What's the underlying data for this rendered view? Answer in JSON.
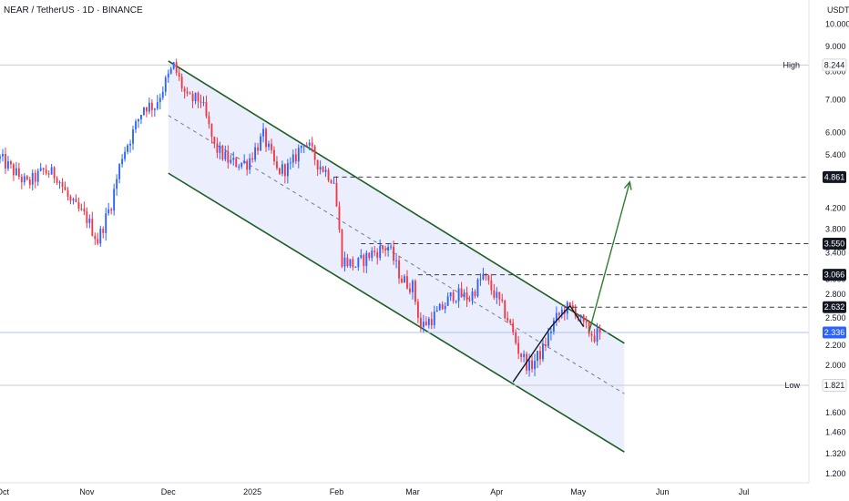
{
  "header": {
    "symbol_line": "NEAR / TetherUS · 1D · BINANCE",
    "currency": "USDT"
  },
  "chart_data": {
    "type": "candlestick",
    "y_scale": "log",
    "ylim": [
      1.15,
      11.2
    ],
    "y_ticks": [
      "10.000",
      "9.000",
      "8.000",
      "7.000",
      "6.000",
      "5.400",
      "4.800",
      "4.200",
      "3.800",
      "3.400",
      "3.000",
      "2.800",
      "2.500",
      "2.200",
      "2.000",
      "1.600",
      "1.460",
      "1.320",
      "1.200"
    ],
    "x_ticks": [
      "Oct",
      "Nov",
      "Dec",
      "2025",
      "Feb",
      "Mar",
      "Apr",
      "May",
      "Jun",
      "Jul"
    ],
    "x_range": [
      "2024-09-30",
      "2025-07-25"
    ],
    "colors": {
      "up": "#2962ff",
      "down": "#f23645",
      "channel": "#1b5e20",
      "channel_fill": "#e9edfd",
      "arrow": "#2e7d32"
    },
    "price_lines": [
      {
        "label": "High",
        "value": "8.244"
      },
      {
        "label": "Low",
        "value": "1.821"
      }
    ],
    "last_price": {
      "value": "2.336",
      "color": "#2962ff"
    },
    "target_levels": [
      "4.861",
      "3.550",
      "3.066",
      "2.632"
    ],
    "channel": {
      "upper": [
        {
          "x": "2024-12-01",
          "y": 8.4
        },
        {
          "x": "2025-05-18",
          "y": 2.22
        }
      ],
      "middle": [
        {
          "x": "2024-12-01",
          "y": 6.5
        },
        {
          "x": "2025-05-18",
          "y": 1.75
        }
      ],
      "lower": [
        {
          "x": "2024-12-01",
          "y": 4.95
        },
        {
          "x": "2025-05-18",
          "y": 1.33
        }
      ]
    },
    "projection_arrow": [
      {
        "x": "2025-05-05",
        "y": 2.34
      },
      {
        "x": "2025-05-20",
        "y": 4.75
      }
    ],
    "zigzag": [
      {
        "x": "2025-04-07",
        "y": 1.85
      },
      {
        "x": "2025-04-21",
        "y": 2.4
      },
      {
        "x": "2025-04-28",
        "y": 2.65
      },
      {
        "x": "2025-05-03",
        "y": 2.4
      }
    ],
    "price_path": [
      {
        "x": "2024-09-30",
        "y": 5.3
      },
      {
        "x": "2024-10-05",
        "y": 5.0
      },
      {
        "x": "2024-10-10",
        "y": 4.7
      },
      {
        "x": "2024-10-16",
        "y": 5.0
      },
      {
        "x": "2024-10-21",
        "y": 4.9
      },
      {
        "x": "2024-10-26",
        "y": 4.3
      },
      {
        "x": "2024-11-01",
        "y": 4.0
      },
      {
        "x": "2024-11-05",
        "y": 3.6
      },
      {
        "x": "2024-11-10",
        "y": 4.3
      },
      {
        "x": "2024-11-14",
        "y": 5.4
      },
      {
        "x": "2024-11-18",
        "y": 6.0
      },
      {
        "x": "2024-11-22",
        "y": 6.8
      },
      {
        "x": "2024-11-26",
        "y": 6.8
      },
      {
        "x": "2024-11-30",
        "y": 7.6
      },
      {
        "x": "2024-12-03",
        "y": 8.2
      },
      {
        "x": "2024-12-08",
        "y": 7.0
      },
      {
        "x": "2024-12-13",
        "y": 7.0
      },
      {
        "x": "2024-12-18",
        "y": 5.6
      },
      {
        "x": "2024-12-24",
        "y": 5.2
      },
      {
        "x": "2024-12-30",
        "y": 5.2
      },
      {
        "x": "2025-01-05",
        "y": 5.9
      },
      {
        "x": "2025-01-10",
        "y": 5.0
      },
      {
        "x": "2025-01-15",
        "y": 5.1
      },
      {
        "x": "2025-01-20",
        "y": 5.8
      },
      {
        "x": "2025-01-25",
        "y": 5.2
      },
      {
        "x": "2025-01-31",
        "y": 4.8
      },
      {
        "x": "2025-02-03",
        "y": 3.3
      },
      {
        "x": "2025-02-08",
        "y": 3.2
      },
      {
        "x": "2025-02-14",
        "y": 3.4
      },
      {
        "x": "2025-02-20",
        "y": 3.5
      },
      {
        "x": "2025-02-25",
        "y": 3.0
      },
      {
        "x": "2025-03-01",
        "y": 2.9
      },
      {
        "x": "2025-03-04",
        "y": 2.4
      },
      {
        "x": "2025-03-10",
        "y": 2.55
      },
      {
        "x": "2025-03-16",
        "y": 2.8
      },
      {
        "x": "2025-03-22",
        "y": 2.75
      },
      {
        "x": "2025-03-27",
        "y": 3.05
      },
      {
        "x": "2025-04-01",
        "y": 2.75
      },
      {
        "x": "2025-04-05",
        "y": 2.5
      },
      {
        "x": "2025-04-09",
        "y": 2.15
      },
      {
        "x": "2025-04-13",
        "y": 1.98
      },
      {
        "x": "2025-04-18",
        "y": 2.15
      },
      {
        "x": "2025-04-22",
        "y": 2.45
      },
      {
        "x": "2025-04-26",
        "y": 2.62
      },
      {
        "x": "2025-04-30",
        "y": 2.6
      },
      {
        "x": "2025-05-03",
        "y": 2.4
      },
      {
        "x": "2025-05-07",
        "y": 2.3
      },
      {
        "x": "2025-05-09",
        "y": 2.336
      }
    ]
  }
}
